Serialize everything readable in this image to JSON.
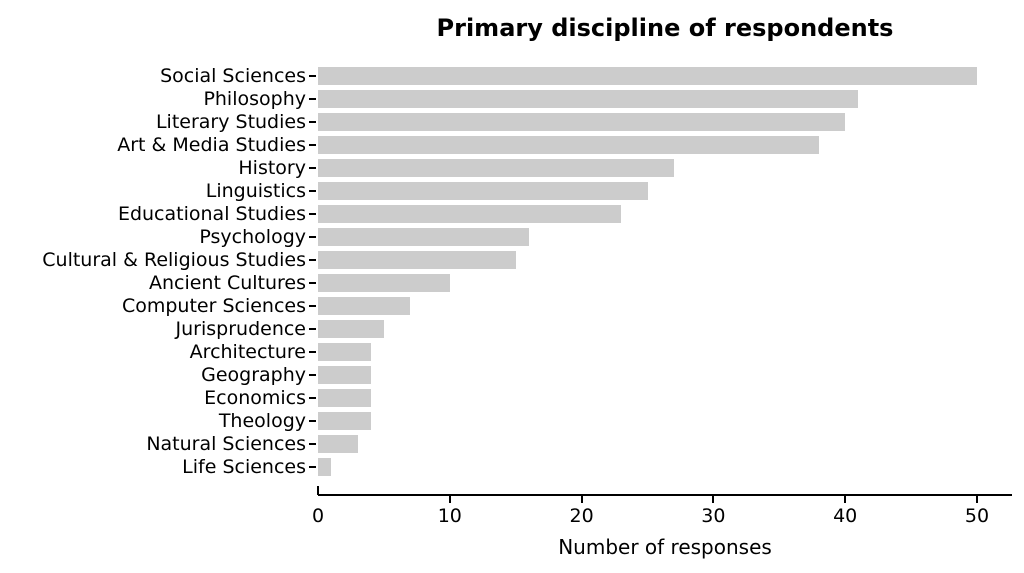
{
  "chart_data": {
    "type": "bar",
    "orientation": "horizontal",
    "title": "Primary discipline of respondents",
    "xlabel": "Number of responses",
    "ylabel": "",
    "categories": [
      "Social Sciences",
      "Philosophy",
      "Literary Studies",
      "Art & Media Studies",
      "History",
      "Linguistics",
      "Educational Studies",
      "Psychology",
      "Cultural & Religious Studies",
      "Ancient Cultures",
      "Computer Sciences",
      "Jurisprudence",
      "Architecture",
      "Geography",
      "Economics",
      "Theology",
      "Natural Sciences",
      "Life Sciences"
    ],
    "values": [
      50,
      41,
      40,
      38,
      27,
      25,
      23,
      16,
      15,
      10,
      7,
      5,
      4,
      4,
      4,
      4,
      3,
      1
    ],
    "xticks": [
      0,
      10,
      20,
      30,
      40,
      50
    ],
    "xlim": [
      0,
      52.7
    ],
    "grid": false,
    "legend": null,
    "bar_color": "#cccccc",
    "axis_color": "#000000",
    "text_color": "#000000",
    "background_color": "#ffffff"
  }
}
